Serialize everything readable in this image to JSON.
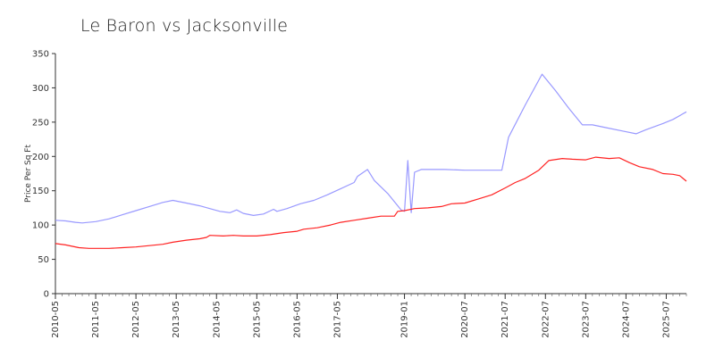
{
  "chart_data": {
    "type": "line",
    "title": "Le Baron vs Jacksonville",
    "xlabel": "",
    "ylabel": "Price Per Sq Ft",
    "xlim": [
      "2010-05",
      "2026-01"
    ],
    "ylim": [
      0,
      350
    ],
    "y_ticks": [
      0,
      50,
      100,
      150,
      200,
      250,
      300,
      350
    ],
    "x_ticks": [
      "2010-05",
      "2011-05",
      "2012-05",
      "2013-05",
      "2014-05",
      "2015-05",
      "2016-05",
      "2017-05",
      "2019-01",
      "2020-07",
      "2021-07",
      "2022-07",
      "2023-07",
      "2024-07",
      "2025-07"
    ],
    "grid": false,
    "legend": "none",
    "series": [
      {
        "color": "#9999ff",
        "points": [
          [
            "2010-05",
            107
          ],
          [
            "2010-08",
            106
          ],
          [
            "2010-11",
            104
          ],
          [
            "2011-01",
            103
          ],
          [
            "2011-05",
            105
          ],
          [
            "2011-09",
            109
          ],
          [
            "2012-01",
            115
          ],
          [
            "2012-05",
            121
          ],
          [
            "2012-09",
            127
          ],
          [
            "2013-01",
            133
          ],
          [
            "2013-04",
            136
          ],
          [
            "2013-08",
            132
          ],
          [
            "2013-12",
            128
          ],
          [
            "2014-03",
            124
          ],
          [
            "2014-06",
            120
          ],
          [
            "2014-09",
            118
          ],
          [
            "2014-11",
            122
          ],
          [
            "2015-01",
            117
          ],
          [
            "2015-04",
            114
          ],
          [
            "2015-07",
            116
          ],
          [
            "2015-10",
            123
          ],
          [
            "2015-11",
            120
          ],
          [
            "2016-02",
            124
          ],
          [
            "2016-06",
            131
          ],
          [
            "2016-10",
            136
          ],
          [
            "2017-02",
            144
          ],
          [
            "2017-06",
            153
          ],
          [
            "2017-10",
            162
          ],
          [
            "2017-11",
            171
          ],
          [
            "2018-02",
            181
          ],
          [
            "2018-04",
            165
          ],
          [
            "2018-08",
            146
          ],
          [
            "2018-12",
            122
          ],
          [
            "2019-01",
            120
          ],
          [
            "2019-02",
            194
          ],
          [
            "2019-03",
            118
          ],
          [
            "2019-04",
            177
          ],
          [
            "2019-06",
            181
          ],
          [
            "2020-01",
            181
          ],
          [
            "2020-07",
            180
          ],
          [
            "2021-01",
            180
          ],
          [
            "2021-06",
            180
          ],
          [
            "2021-08",
            228
          ],
          [
            "2022-01",
            275
          ],
          [
            "2022-06",
            320
          ],
          [
            "2022-10",
            296
          ],
          [
            "2023-02",
            270
          ],
          [
            "2023-06",
            246
          ],
          [
            "2023-09",
            246
          ],
          [
            "2024-01",
            242
          ],
          [
            "2024-06",
            237
          ],
          [
            "2024-10",
            233
          ],
          [
            "2025-01",
            239
          ],
          [
            "2025-06",
            248
          ],
          [
            "2025-09",
            254
          ],
          [
            "2026-01",
            265
          ]
        ]
      },
      {
        "color": "#ff2222",
        "points": [
          [
            "2010-05",
            73
          ],
          [
            "2010-08",
            71
          ],
          [
            "2010-12",
            67
          ],
          [
            "2011-03",
            66
          ],
          [
            "2011-06",
            66
          ],
          [
            "2011-09",
            66
          ],
          [
            "2012-01",
            67
          ],
          [
            "2012-05",
            68
          ],
          [
            "2012-09",
            70
          ],
          [
            "2013-01",
            72
          ],
          [
            "2013-04",
            75
          ],
          [
            "2013-08",
            78
          ],
          [
            "2013-12",
            80
          ],
          [
            "2014-02",
            82
          ],
          [
            "2014-03",
            85
          ],
          [
            "2014-07",
            84
          ],
          [
            "2014-10",
            85
          ],
          [
            "2015-01",
            84
          ],
          [
            "2015-05",
            84
          ],
          [
            "2015-09",
            86
          ],
          [
            "2016-01",
            89
          ],
          [
            "2016-05",
            91
          ],
          [
            "2016-07",
            94
          ],
          [
            "2016-11",
            96
          ],
          [
            "2017-03",
            100
          ],
          [
            "2017-06",
            104
          ],
          [
            "2017-10",
            107
          ],
          [
            "2018-02",
            110
          ],
          [
            "2018-06",
            113
          ],
          [
            "2018-10",
            113
          ],
          [
            "2018-11",
            120
          ],
          [
            "2019-01",
            121
          ],
          [
            "2019-04",
            124
          ],
          [
            "2019-08",
            125
          ],
          [
            "2019-12",
            127
          ],
          [
            "2020-03",
            131
          ],
          [
            "2020-07",
            132
          ],
          [
            "2020-11",
            138
          ],
          [
            "2021-03",
            144
          ],
          [
            "2021-07",
            154
          ],
          [
            "2021-10",
            162
          ],
          [
            "2022-01",
            168
          ],
          [
            "2022-05",
            180
          ],
          [
            "2022-08",
            194
          ],
          [
            "2022-12",
            197
          ],
          [
            "2023-03",
            196
          ],
          [
            "2023-07",
            195
          ],
          [
            "2023-10",
            199
          ],
          [
            "2024-02",
            197
          ],
          [
            "2024-05",
            198
          ],
          [
            "2024-08",
            191
          ],
          [
            "2024-11",
            185
          ],
          [
            "2025-03",
            181
          ],
          [
            "2025-06",
            175
          ],
          [
            "2025-09",
            174
          ],
          [
            "2025-11",
            172
          ],
          [
            "2026-01",
            164
          ]
        ]
      }
    ]
  }
}
